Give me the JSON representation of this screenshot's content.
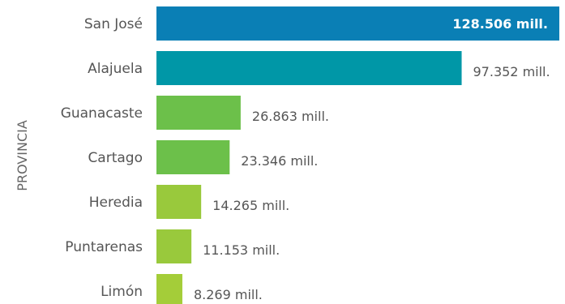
{
  "chart_data": {
    "type": "bar",
    "orientation": "horizontal",
    "ylabel": "PROVINCIA",
    "xlabel": "",
    "xlim": [
      0,
      128506
    ],
    "grid": false,
    "categories": [
      "San José",
      "Alajuela",
      "Guanacaste",
      "Cartago",
      "Heredia",
      "Puntarenas",
      "Limón"
    ],
    "values": [
      128506,
      97352,
      26863,
      23346,
      14265,
      11153,
      8269
    ],
    "data_labels": [
      "128.506 mill.",
      "97.352 mill.",
      "26.863 mill.",
      "23.346 mill.",
      "14.265 mill.",
      "11.153 mill.",
      "8.269 mill."
    ],
    "colors": [
      "#0a7fb5",
      "#0097a7",
      "#6cc04a",
      "#6cc04a",
      "#99c93c",
      "#99c93c",
      "#a4cd39"
    ]
  }
}
